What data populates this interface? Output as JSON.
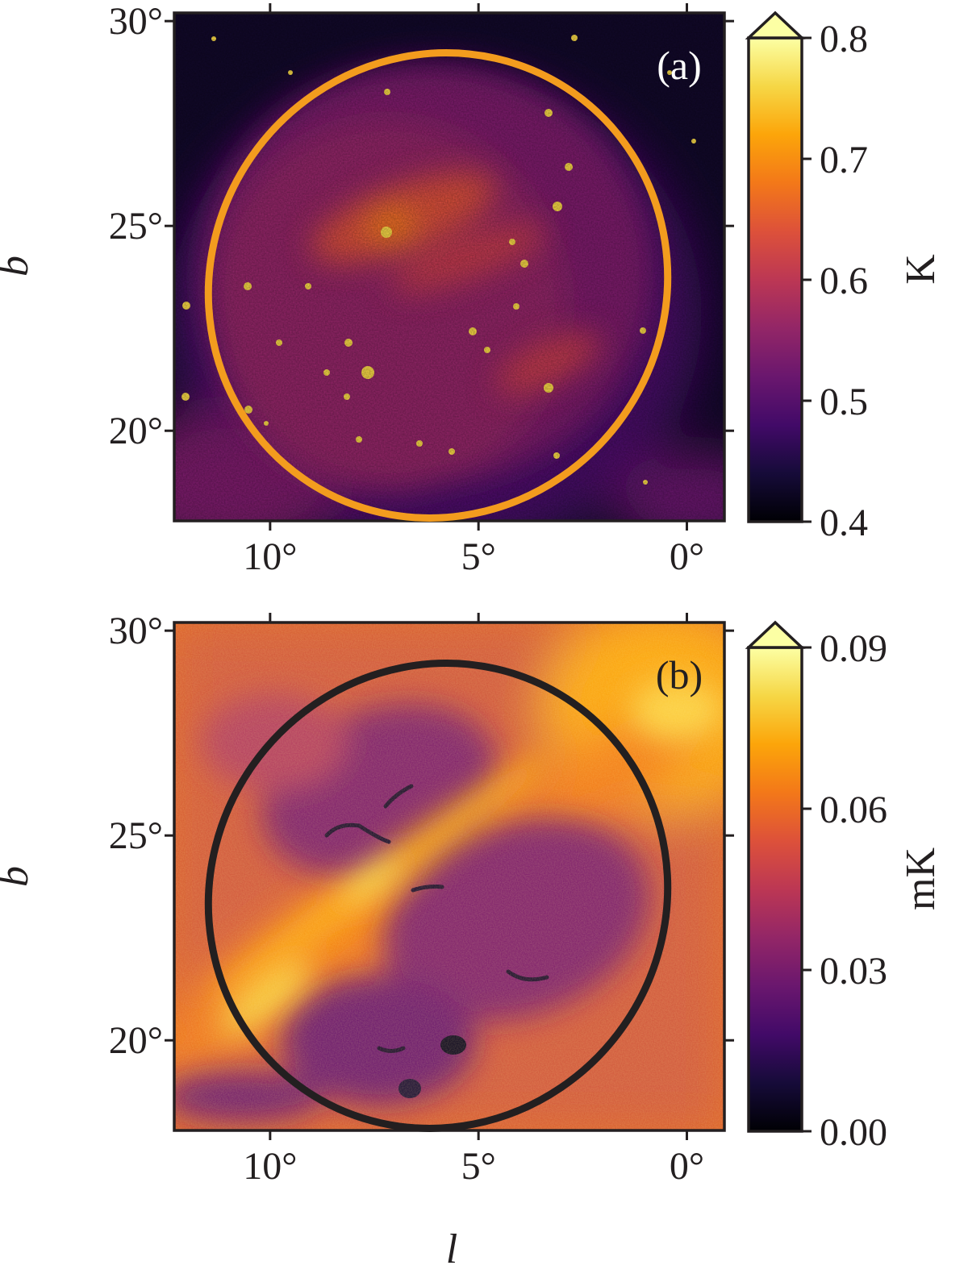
{
  "chart_data": [
    {
      "type": "heatmap",
      "panel_label": "(a)",
      "xlabel": "",
      "ylabel": "b",
      "x_ticks": [
        {
          "value": 10,
          "label": "10°"
        },
        {
          "value": 5,
          "label": "5°"
        },
        {
          "value": 0,
          "label": "0°"
        }
      ],
      "y_ticks": [
        {
          "value": 30,
          "label": "30°"
        },
        {
          "value": 25,
          "label": "25°"
        },
        {
          "value": 20,
          "label": "20°"
        }
      ],
      "xlim": [
        12.3,
        -0.9
      ],
      "ylim": [
        17.8,
        30.2
      ],
      "x_reversed": true,
      "colormap": "inferno",
      "colorbar": {
        "unit": "K",
        "range": [
          0.4,
          0.8
        ],
        "extend": "max",
        "ticks": [
          {
            "value": 0.8,
            "label": "0.8"
          },
          {
            "value": 0.7,
            "label": "0.7"
          },
          {
            "value": 0.6,
            "label": "0.6"
          },
          {
            "value": 0.5,
            "label": "0.5"
          },
          {
            "value": 0.4,
            "label": "0.4"
          }
        ]
      },
      "overlay_ellipse": {
        "color": "#f39c1e",
        "center": [
          5.95,
          23.5
        ],
        "semi_axes_deg": [
          5.4,
          5.7
        ],
        "rotation_deg": 35
      },
      "features": [
        {
          "type": "blob",
          "x": 7.0,
          "y": 25.0,
          "value": 0.76
        },
        {
          "type": "blob",
          "x": 4.5,
          "y": 24.0,
          "value": 0.68
        },
        {
          "type": "blob",
          "x": 3.5,
          "y": 21.5,
          "value": 0.67
        }
      ]
    },
    {
      "type": "heatmap",
      "panel_label": "(b)",
      "xlabel": "l",
      "ylabel": "b",
      "x_ticks": [
        {
          "value": 10,
          "label": "10°"
        },
        {
          "value": 5,
          "label": "5°"
        },
        {
          "value": 0,
          "label": "0°"
        }
      ],
      "y_ticks": [
        {
          "value": 30,
          "label": "30°"
        },
        {
          "value": 25,
          "label": "25°"
        },
        {
          "value": 20,
          "label": "20°"
        }
      ],
      "xlim": [
        12.3,
        -0.9
      ],
      "ylim": [
        17.8,
        30.2
      ],
      "x_reversed": true,
      "colormap": "inferno",
      "colorbar": {
        "unit": "mK",
        "range": [
          0.0,
          0.09
        ],
        "extend": "max",
        "ticks": [
          {
            "value": 0.09,
            "label": "0.09"
          },
          {
            "value": 0.06,
            "label": "0.06"
          },
          {
            "value": 0.03,
            "label": "0.03"
          },
          {
            "value": 0.0,
            "label": "0.00"
          }
        ]
      },
      "overlay_ellipse": {
        "color": "#231f20",
        "center": [
          5.95,
          23.5
        ],
        "semi_axes_deg": [
          5.4,
          5.7
        ],
        "rotation_deg": 35
      },
      "features": [
        {
          "type": "ridge",
          "x": 6.5,
          "y": 23.5,
          "value": 0.08
        },
        {
          "type": "void",
          "x": 6.8,
          "y": 25.0,
          "value": 0.005
        },
        {
          "type": "void",
          "x": 5.6,
          "y": 19.0,
          "value": 0.005
        }
      ]
    }
  ]
}
